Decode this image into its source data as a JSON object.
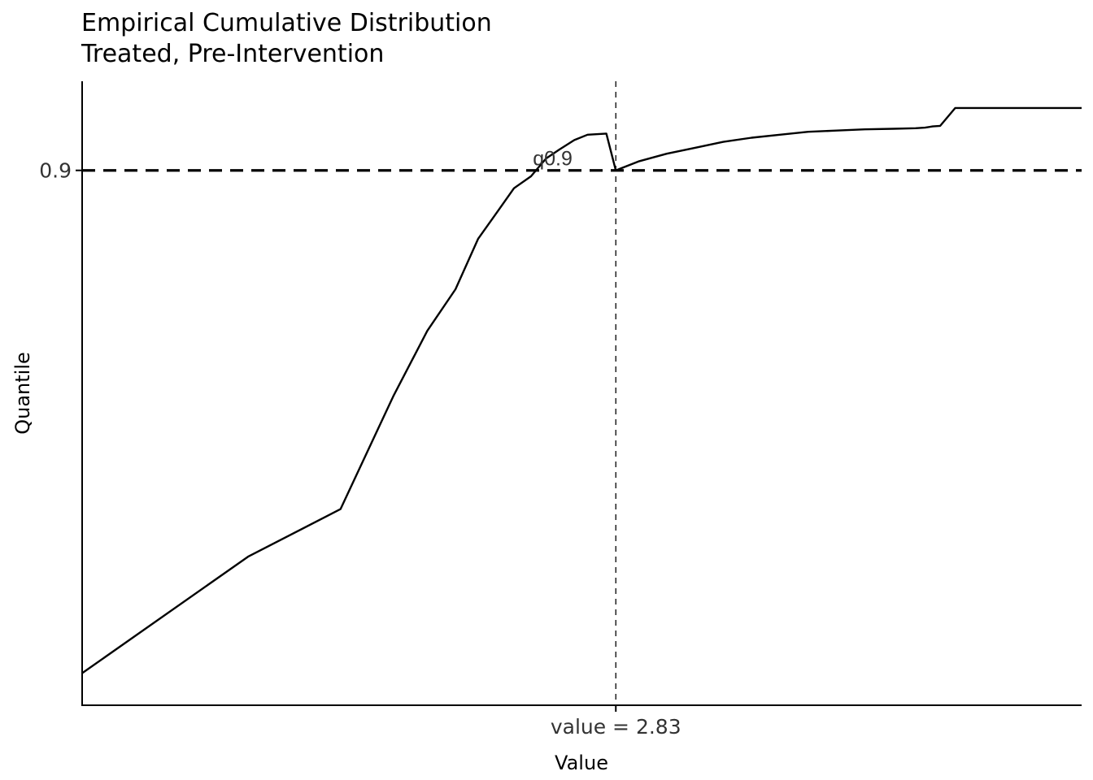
{
  "chart_data": {
    "type": "line",
    "title": "Empirical Cumulative Distribution",
    "subtitle": "Treated, Pre-Intervention",
    "xlabel": "Value",
    "ylabel": "Quantile",
    "xlim": [
      0.0,
      5.3
    ],
    "ylim": [
      0.0,
      1.05
    ],
    "y_ticks": [
      {
        "value": 0.9,
        "label": "0.9"
      }
    ],
    "x_ticks": [
      {
        "value": 2.83,
        "label": "value = 2.83"
      }
    ],
    "grid": false,
    "reference_lines": {
      "horizontal": {
        "y": 0.9,
        "label": "q0.9",
        "style": "dashed"
      },
      "vertical": {
        "x": 2.83,
        "style": "dashed"
      }
    },
    "series": [
      {
        "x": [
          0.0,
          0.88,
          1.37,
          1.65,
          1.83,
          1.98,
          2.1,
          2.19,
          2.29,
          2.38,
          2.46,
          2.53,
          2.61,
          2.68,
          2.78,
          2.83,
          2.95,
          3.1,
          3.25,
          3.4,
          3.55,
          3.7,
          3.85,
          4.0,
          4.15,
          4.3,
          4.42,
          4.47,
          4.51,
          4.55,
          4.63,
          5.3
        ],
        "y": [
          0.054,
          0.25,
          0.33,
          0.52,
          0.63,
          0.7,
          0.785,
          0.825,
          0.87,
          0.89,
          0.92,
          0.935,
          0.951,
          0.96,
          0.962,
          0.9,
          0.915,
          0.928,
          0.938,
          0.948,
          0.955,
          0.96,
          0.965,
          0.967,
          0.969,
          0.97,
          0.971,
          0.972,
          0.974,
          0.975,
          1.005,
          1.005
        ]
      }
    ]
  }
}
